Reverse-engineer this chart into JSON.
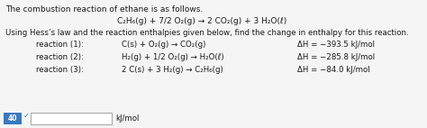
{
  "title_line": "The combustion reaction of ethane is as follows.",
  "main_reaction": "C₂H₆(g) + 7/2 O₂(g) → 2 CO₂(g) + 3 H₂O(ℓ)",
  "hess_line": "Using Hess’s law and the reaction enthalpies given below, find the change in enthalpy for this reaction.",
  "reactions": [
    {
      "label": "reaction (1):",
      "eq": "C(s) + O₂(g) → CO₂(g)",
      "dH": "ΔH = −393.5 kJ/mol"
    },
    {
      "label": "reaction (2):",
      "eq": "H₂(g) + 1/2 O₂(g) → H₂O(ℓ)",
      "dH": "ΔH = −285.8 kJ/mol"
    },
    {
      "label": "reaction (3):",
      "eq": "2 C(s) + 3 H₂(g) → C₂H₆(g)",
      "dH": "ΔH = −84.0 kJ/mol"
    }
  ],
  "answer_label": "kJ/mol",
  "badge_text": "40",
  "badge_color": "#3a7abf",
  "bg_color": "#f5f5f5",
  "text_color": "#1a1a1a",
  "font_size": 6.5,
  "small_font": 6.2
}
